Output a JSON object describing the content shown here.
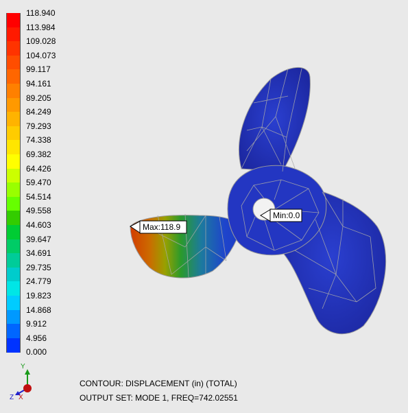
{
  "legend": {
    "labels": [
      "118.940",
      "113.984",
      "109.028",
      "104.073",
      "99.117",
      "94.161",
      "89.205",
      "84.249",
      "79.293",
      "74.338",
      "69.382",
      "64.426",
      "59.470",
      "54.514",
      "49.558",
      "44.603",
      "39.647",
      "34.691",
      "29.735",
      "24.779",
      "19.823",
      "14.868",
      "9.912",
      "4.956",
      "0.000"
    ],
    "colors": [
      "#ff0000",
      "#ff1a00",
      "#ff3300",
      "#ff4d00",
      "#ff6600",
      "#ff8000",
      "#ff9900",
      "#ffb300",
      "#ffcc00",
      "#ffe600",
      "#ffff00",
      "#ccff00",
      "#99ff00",
      "#66ff00",
      "#33cc00",
      "#00cc33",
      "#00cc66",
      "#00cc99",
      "#00cccc",
      "#00e6e6",
      "#00ccff",
      "#0099ff",
      "#0066ff",
      "#0033ff",
      "#0000ff"
    ]
  },
  "callouts": {
    "max_label": "Max:118.9",
    "min_label": "Min:0.0"
  },
  "triad": {
    "y": "Y",
    "z": "Z",
    "x": "X"
  },
  "status": {
    "contour": "CONTOUR: DISPLACEMENT (in) (TOTAL)",
    "output_set": "OUTPUT SET: MODE 1, FREQ=742.02551"
  }
}
